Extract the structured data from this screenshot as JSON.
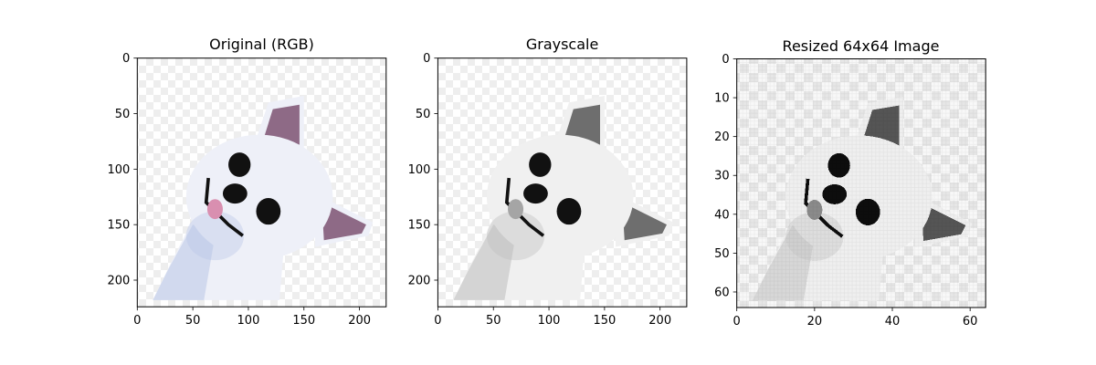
{
  "chart_data": [
    {
      "type": "image",
      "title": "Original (RGB)",
      "xlim": [
        0,
        224
      ],
      "ylim": [
        224,
        0
      ],
      "xticks": [
        0,
        50,
        100,
        150,
        200
      ],
      "yticks": [
        0,
        50,
        100,
        150,
        200
      ],
      "image": {
        "subject": "chihuahua dog with head tilted, on checkered transparent background",
        "color_mode": "rgb",
        "colors": {
          "fur": "#eef0f8",
          "fur_shadow": "#b9c6e6",
          "ear_inner": "#8e6a86",
          "tongue": "#d98fb0",
          "eyes_nose": "#111111"
        }
      }
    },
    {
      "type": "image",
      "title": "Grayscale",
      "xlim": [
        0,
        224
      ],
      "ylim": [
        224,
        0
      ],
      "xticks": [
        0,
        50,
        100,
        150,
        200
      ],
      "yticks": [
        0,
        50,
        100,
        150,
        200
      ],
      "image": {
        "subject": "chihuahua dog with head tilted, on checkered transparent background",
        "color_mode": "grayscale",
        "colors": {
          "fur": "#f0f0f0",
          "fur_shadow": "#bdbdbd",
          "ear_inner": "#6e6e6e",
          "tongue": "#a5a5a5",
          "eyes_nose": "#111111"
        }
      }
    },
    {
      "type": "image",
      "title": "Resized 64x64 Image",
      "xlim": [
        0,
        64
      ],
      "ylim": [
        64,
        0
      ],
      "xticks": [
        0,
        20,
        40,
        60
      ],
      "yticks": [
        0,
        10,
        20,
        30,
        40,
        50,
        60
      ],
      "image": {
        "subject": "chihuahua dog with head tilted, on checkered transparent background",
        "color_mode": "grayscale",
        "resolution": [
          64,
          64
        ],
        "colors": {
          "fur": "#efefef",
          "fur_shadow": "#c2c2c2",
          "ear_inner": "#555555",
          "tongue": "#8a8a8a",
          "eyes_nose": "#0d0d0d"
        }
      }
    }
  ]
}
